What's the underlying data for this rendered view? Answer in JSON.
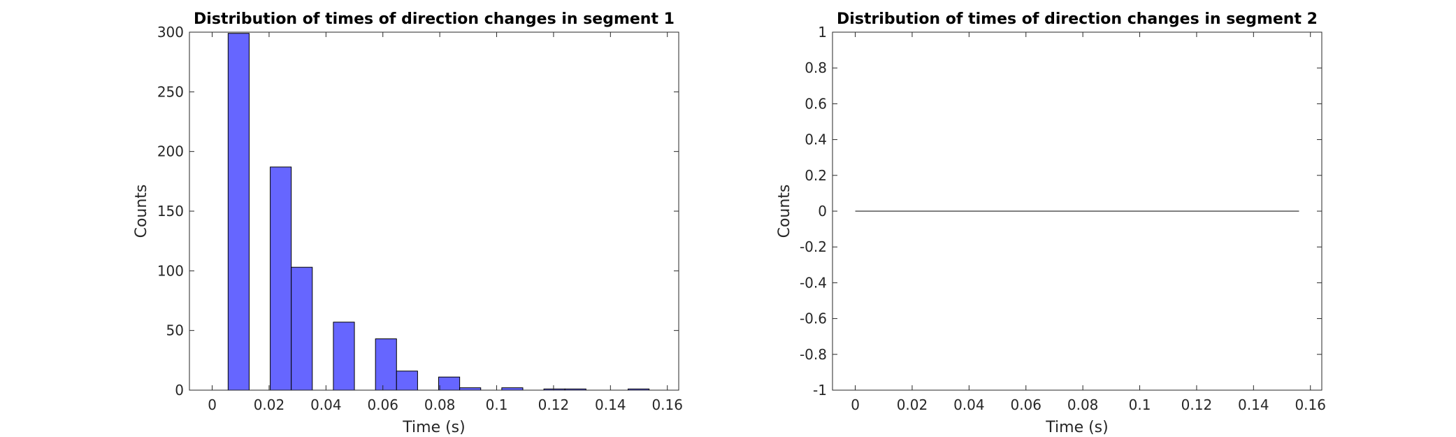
{
  "chart_data": [
    {
      "type": "bar",
      "title": "Distribution of times of direction changes in segment 1",
      "xlabel": "Time (s)",
      "ylabel": "Counts",
      "xlim": [
        -0.008,
        0.164
      ],
      "ylim": [
        0,
        300
      ],
      "xticks": [
        0,
        0.02,
        0.04,
        0.06,
        0.08,
        0.1,
        0.12,
        0.14,
        0.16
      ],
      "xtick_labels": [
        "0",
        "0.02",
        "0.04",
        "0.06",
        "0.08",
        "0.1",
        "0.12",
        "0.14",
        "0.16"
      ],
      "yticks": [
        0,
        50,
        100,
        150,
        200,
        250,
        300
      ],
      "ytick_labels": [
        "0",
        "50",
        "100",
        "150",
        "200",
        "250",
        "300"
      ],
      "bin_width": 0.0074,
      "bin_centers": [
        0.0093,
        0.0241,
        0.0315,
        0.0463,
        0.0611,
        0.0685,
        0.0833,
        0.0907,
        0.1055,
        0.1203,
        0.1277,
        0.1499
      ],
      "values": [
        299,
        187,
        103,
        57,
        43,
        16,
        11,
        2,
        2,
        1,
        1,
        1
      ],
      "bar_color": "#6666ff",
      "grid": false
    },
    {
      "type": "line",
      "title": "Distribution of times of direction changes in segment 2",
      "xlabel": "Time (s)",
      "ylabel": "Counts",
      "xlim": [
        -0.008,
        0.164
      ],
      "ylim": [
        -1,
        1
      ],
      "xticks": [
        0,
        0.02,
        0.04,
        0.06,
        0.08,
        0.1,
        0.12,
        0.14,
        0.16
      ],
      "xtick_labels": [
        "0",
        "0.02",
        "0.04",
        "0.06",
        "0.08",
        "0.1",
        "0.12",
        "0.14",
        "0.16"
      ],
      "yticks": [
        -1,
        -0.8,
        -0.6,
        -0.4,
        -0.2,
        0,
        0.2,
        0.4,
        0.6,
        0.8,
        1
      ],
      "ytick_labels": [
        "-1",
        "-0.8",
        "-0.6",
        "-0.4",
        "-0.2",
        "0",
        "0.2",
        "0.4",
        "0.6",
        "0.8",
        "1"
      ],
      "x": [
        0,
        0.156
      ],
      "y": [
        0,
        0
      ],
      "line_color": "#000000",
      "grid": false
    }
  ]
}
